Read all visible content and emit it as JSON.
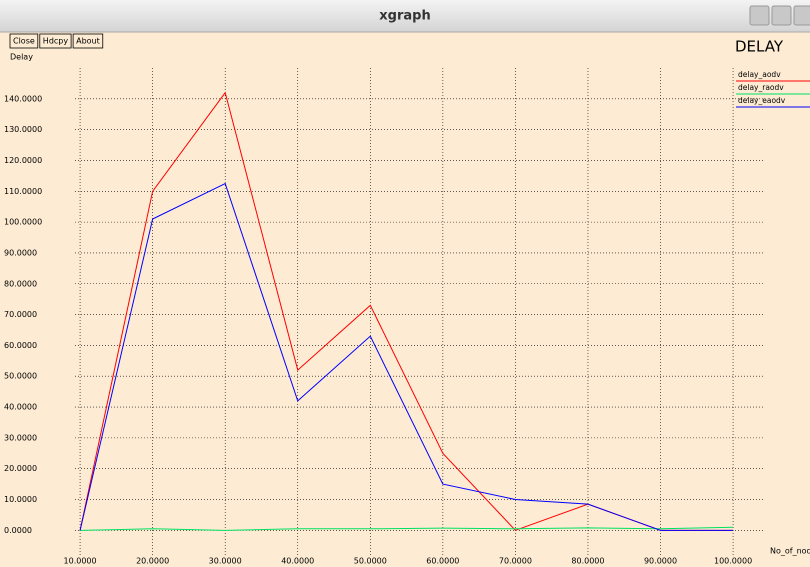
{
  "window": {
    "title": "xgraph",
    "buttons": [
      "Close",
      "Hdcpy",
      "About"
    ]
  },
  "chart_data": {
    "type": "line",
    "title": "DELAY",
    "y_label": "Delay",
    "x_label": "No_of_nodes",
    "x": [
      10,
      20,
      30,
      40,
      50,
      60,
      70,
      80,
      90,
      100
    ],
    "series": [
      {
        "name": "delay_aodv",
        "color": "#ff0000",
        "values": [
          0,
          110,
          142,
          52,
          73,
          25,
          0,
          8.5,
          0,
          0
        ]
      },
      {
        "name": "delay_raodv",
        "color": "#00e060",
        "values": [
          0,
          0.5,
          0,
          0.5,
          0.5,
          0.7,
          0.5,
          0.8,
          0.5,
          1
        ]
      },
      {
        "name": "delay_eaodv",
        "color": "#0000ff",
        "values": [
          0,
          101,
          112.5,
          42,
          63,
          15,
          10,
          8.5,
          0,
          0
        ]
      }
    ],
    "xlim": [
      9.3,
      104.4
    ],
    "ylim": [
      -8,
      150
    ],
    "xticks": [
      {
        "value": 10,
        "label": "10.0000"
      },
      {
        "value": 20,
        "label": "20.0000"
      },
      {
        "value": 30,
        "label": "30.0000"
      },
      {
        "value": 40,
        "label": "40.0000"
      },
      {
        "value": 50,
        "label": "50.0000"
      },
      {
        "value": 60,
        "label": "60.0000"
      },
      {
        "value": 70,
        "label": "70.0000"
      },
      {
        "value": 80,
        "label": "80.0000"
      },
      {
        "value": 90,
        "label": "90.0000"
      },
      {
        "value": 100,
        "label": "100.0000"
      }
    ],
    "yticks": [
      {
        "value": 0,
        "label": "0.0000"
      },
      {
        "value": 10,
        "label": "10.0000"
      },
      {
        "value": 20,
        "label": "20.0000"
      },
      {
        "value": 30,
        "label": "30.0000"
      },
      {
        "value": 40,
        "label": "40.0000"
      },
      {
        "value": 50,
        "label": "50.0000"
      },
      {
        "value": 60,
        "label": "60.0000"
      },
      {
        "value": 70,
        "label": "70.0000"
      },
      {
        "value": 80,
        "label": "80.0000"
      },
      {
        "value": 90,
        "label": "90.0000"
      },
      {
        "value": 100,
        "label": "100.0000"
      },
      {
        "value": 110,
        "label": "110.0000"
      },
      {
        "value": 120,
        "label": "120.0000"
      },
      {
        "value": 130,
        "label": "130.0000"
      },
      {
        "value": 140,
        "label": "140.0000"
      }
    ],
    "grid": true,
    "legend": "top-right"
  }
}
